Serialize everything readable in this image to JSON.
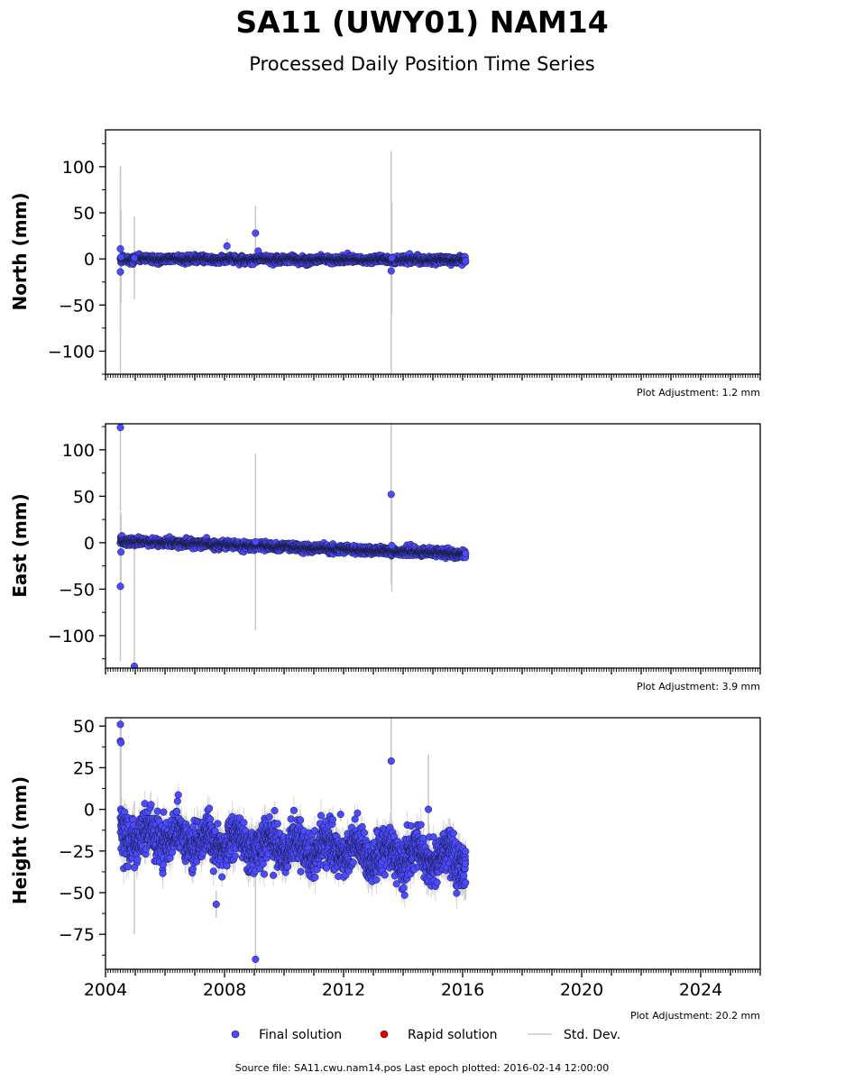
{
  "title": "SA11 (UWY01) NAM14",
  "subtitle": "Processed Daily Position Time Series",
  "footer": "Source file: SA11.cwu.nam14.pos  Last epoch plotted: 2016-02-14 12:00:00",
  "legend": {
    "final": "Final solution",
    "rapid": "Rapid solution",
    "stddev": "Std. Dev."
  },
  "colors": {
    "final": "#4a4aff",
    "final_edge": "#1a1a40",
    "rapid": "#e00000",
    "stddev": "#c8c8c8"
  },
  "chart_data": [
    {
      "type": "scatter",
      "ylabel": "North (mm)",
      "adjustment": "Plot Adjustment: 1.2 mm",
      "xlim": [
        2004.0,
        2026.0
      ],
      "ylim": [
        -125,
        140
      ],
      "yticks": [
        -100,
        -50,
        0,
        50,
        100
      ],
      "trend": [
        [
          2004.5,
          0
        ],
        [
          2016.1,
          -1
        ]
      ],
      "noise": 1.8,
      "noise_err": 3.5,
      "outliers": [
        [
          2004.5,
          11,
          90
        ],
        [
          2004.5,
          -14,
          110
        ],
        [
          2004.52,
          2,
          50
        ],
        [
          2004.97,
          1,
          45
        ],
        [
          2008.08,
          14,
          8
        ],
        [
          2009.04,
          28,
          30
        ],
        [
          2013.6,
          -13,
          130
        ],
        [
          2013.62,
          1,
          60
        ]
      ]
    },
    {
      "type": "scatter",
      "ylabel": "East (mm)",
      "adjustment": "Plot Adjustment: 3.9 mm",
      "xlim": [
        2004.0,
        2026.0
      ],
      "ylim": [
        -135,
        128
      ],
      "yticks": [
        -100,
        -50,
        0,
        50,
        100
      ],
      "trend": [
        [
          2004.5,
          2
        ],
        [
          2016.1,
          -12
        ]
      ],
      "noise": 2.0,
      "noise_err": 3.5,
      "outliers": [
        [
          2004.5,
          124,
          90
        ],
        [
          2004.5,
          -47,
          80
        ],
        [
          2004.52,
          -10,
          40
        ],
        [
          2004.97,
          -133,
          140
        ],
        [
          2009.04,
          1,
          95
        ],
        [
          2013.6,
          52,
          95
        ],
        [
          2013.62,
          -3,
          50
        ]
      ]
    },
    {
      "type": "scatter",
      "ylabel": "Height (mm)",
      "adjustment": "Plot Adjustment: 20.2 mm",
      "xlim": [
        2004.0,
        2026.0
      ],
      "ylim": [
        -96,
        55
      ],
      "yticks": [
        -75,
        -50,
        -25,
        0,
        25,
        50
      ],
      "xticks": [
        2004,
        2008,
        2012,
        2016,
        2020,
        2024
      ],
      "trend": [
        [
          2004.5,
          -15
        ],
        [
          2016.1,
          -30
        ]
      ],
      "noise": 6.5,
      "noise_err": 7.0,
      "outliers": [
        [
          2004.5,
          51,
          80
        ],
        [
          2004.5,
          41,
          70
        ],
        [
          2004.52,
          40,
          60
        ],
        [
          2004.97,
          -35,
          40
        ],
        [
          2007.72,
          -57,
          8
        ],
        [
          2009.04,
          -90,
          80
        ],
        [
          2011.9,
          -3,
          4
        ],
        [
          2013.6,
          29,
          60
        ],
        [
          2014.85,
          0,
          33
        ],
        [
          2016.1,
          -44,
          10
        ]
      ]
    }
  ]
}
